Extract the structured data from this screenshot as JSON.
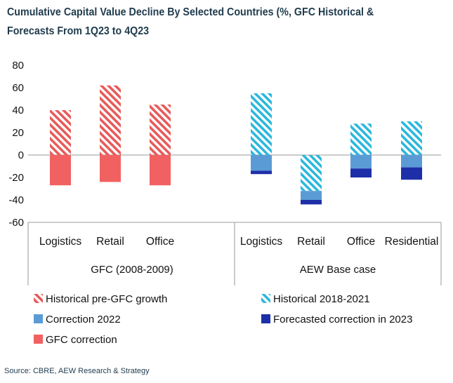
{
  "title": {
    "line1": "Cumulative Capital Value Decline By Selected Countries (%, GFC Historical &",
    "line2": "Forecasts From 1Q23 to 4Q23"
  },
  "source": "Source: CBRE, AEW Research & Strategy",
  "colors": {
    "historical_pre_gfc": "#e85a5a",
    "gfc_correction": "#f26161",
    "historical_2018_2021": "#2bb7dd",
    "correction_2022": "#5b9bd5",
    "forecast_2023": "#1d2fa8",
    "axis": "#9a9a9a",
    "text": "#111111"
  },
  "legend": {
    "historical_pre_gfc": "Historical pre-GFC growth",
    "historical_2018_2021": "Historical 2018-2021",
    "correction_2022": "Correction 2022",
    "forecast_2023": "Forecasted correction in 2023",
    "gfc_correction": "GFC correction"
  },
  "chart_data": {
    "type": "bar",
    "stacked": true,
    "ylim": [
      -60,
      80
    ],
    "yticks": [
      80,
      60,
      40,
      20,
      0,
      -20,
      -40,
      -60
    ],
    "groups": [
      {
        "label": "GFC (2008-2009)",
        "categories": [
          "Logistics",
          "Retail",
          "Office"
        ]
      },
      {
        "label": "AEW Base case",
        "categories": [
          "Logistics",
          "Retail",
          "Office",
          "Residential"
        ]
      }
    ],
    "categories": [
      "Logistics",
      "Retail",
      "Office",
      "Logistics",
      "Retail",
      "Office",
      "Residential"
    ],
    "series": [
      {
        "name": "Historical pre-GFC growth",
        "key": "historical_pre_gfc",
        "pattern": "hatched",
        "values": [
          40,
          62,
          45,
          null,
          null,
          null,
          null
        ]
      },
      {
        "name": "GFC correction",
        "key": "gfc_correction",
        "pattern": "solid",
        "values": [
          -27,
          -24,
          -27,
          null,
          null,
          null,
          null
        ]
      },
      {
        "name": "Historical 2018-2021",
        "key": "historical_2018_2021",
        "pattern": "hatched",
        "values": [
          null,
          null,
          null,
          55,
          -32,
          28,
          30
        ]
      },
      {
        "name": "Correction 2022",
        "key": "correction_2022",
        "pattern": "solid",
        "values": [
          null,
          null,
          null,
          -14,
          -8,
          -12,
          -11
        ]
      },
      {
        "name": "Forecasted correction in 2023",
        "key": "forecast_2023",
        "pattern": "solid",
        "values": [
          null,
          null,
          null,
          -3,
          -4,
          -8,
          -11
        ]
      }
    ]
  }
}
